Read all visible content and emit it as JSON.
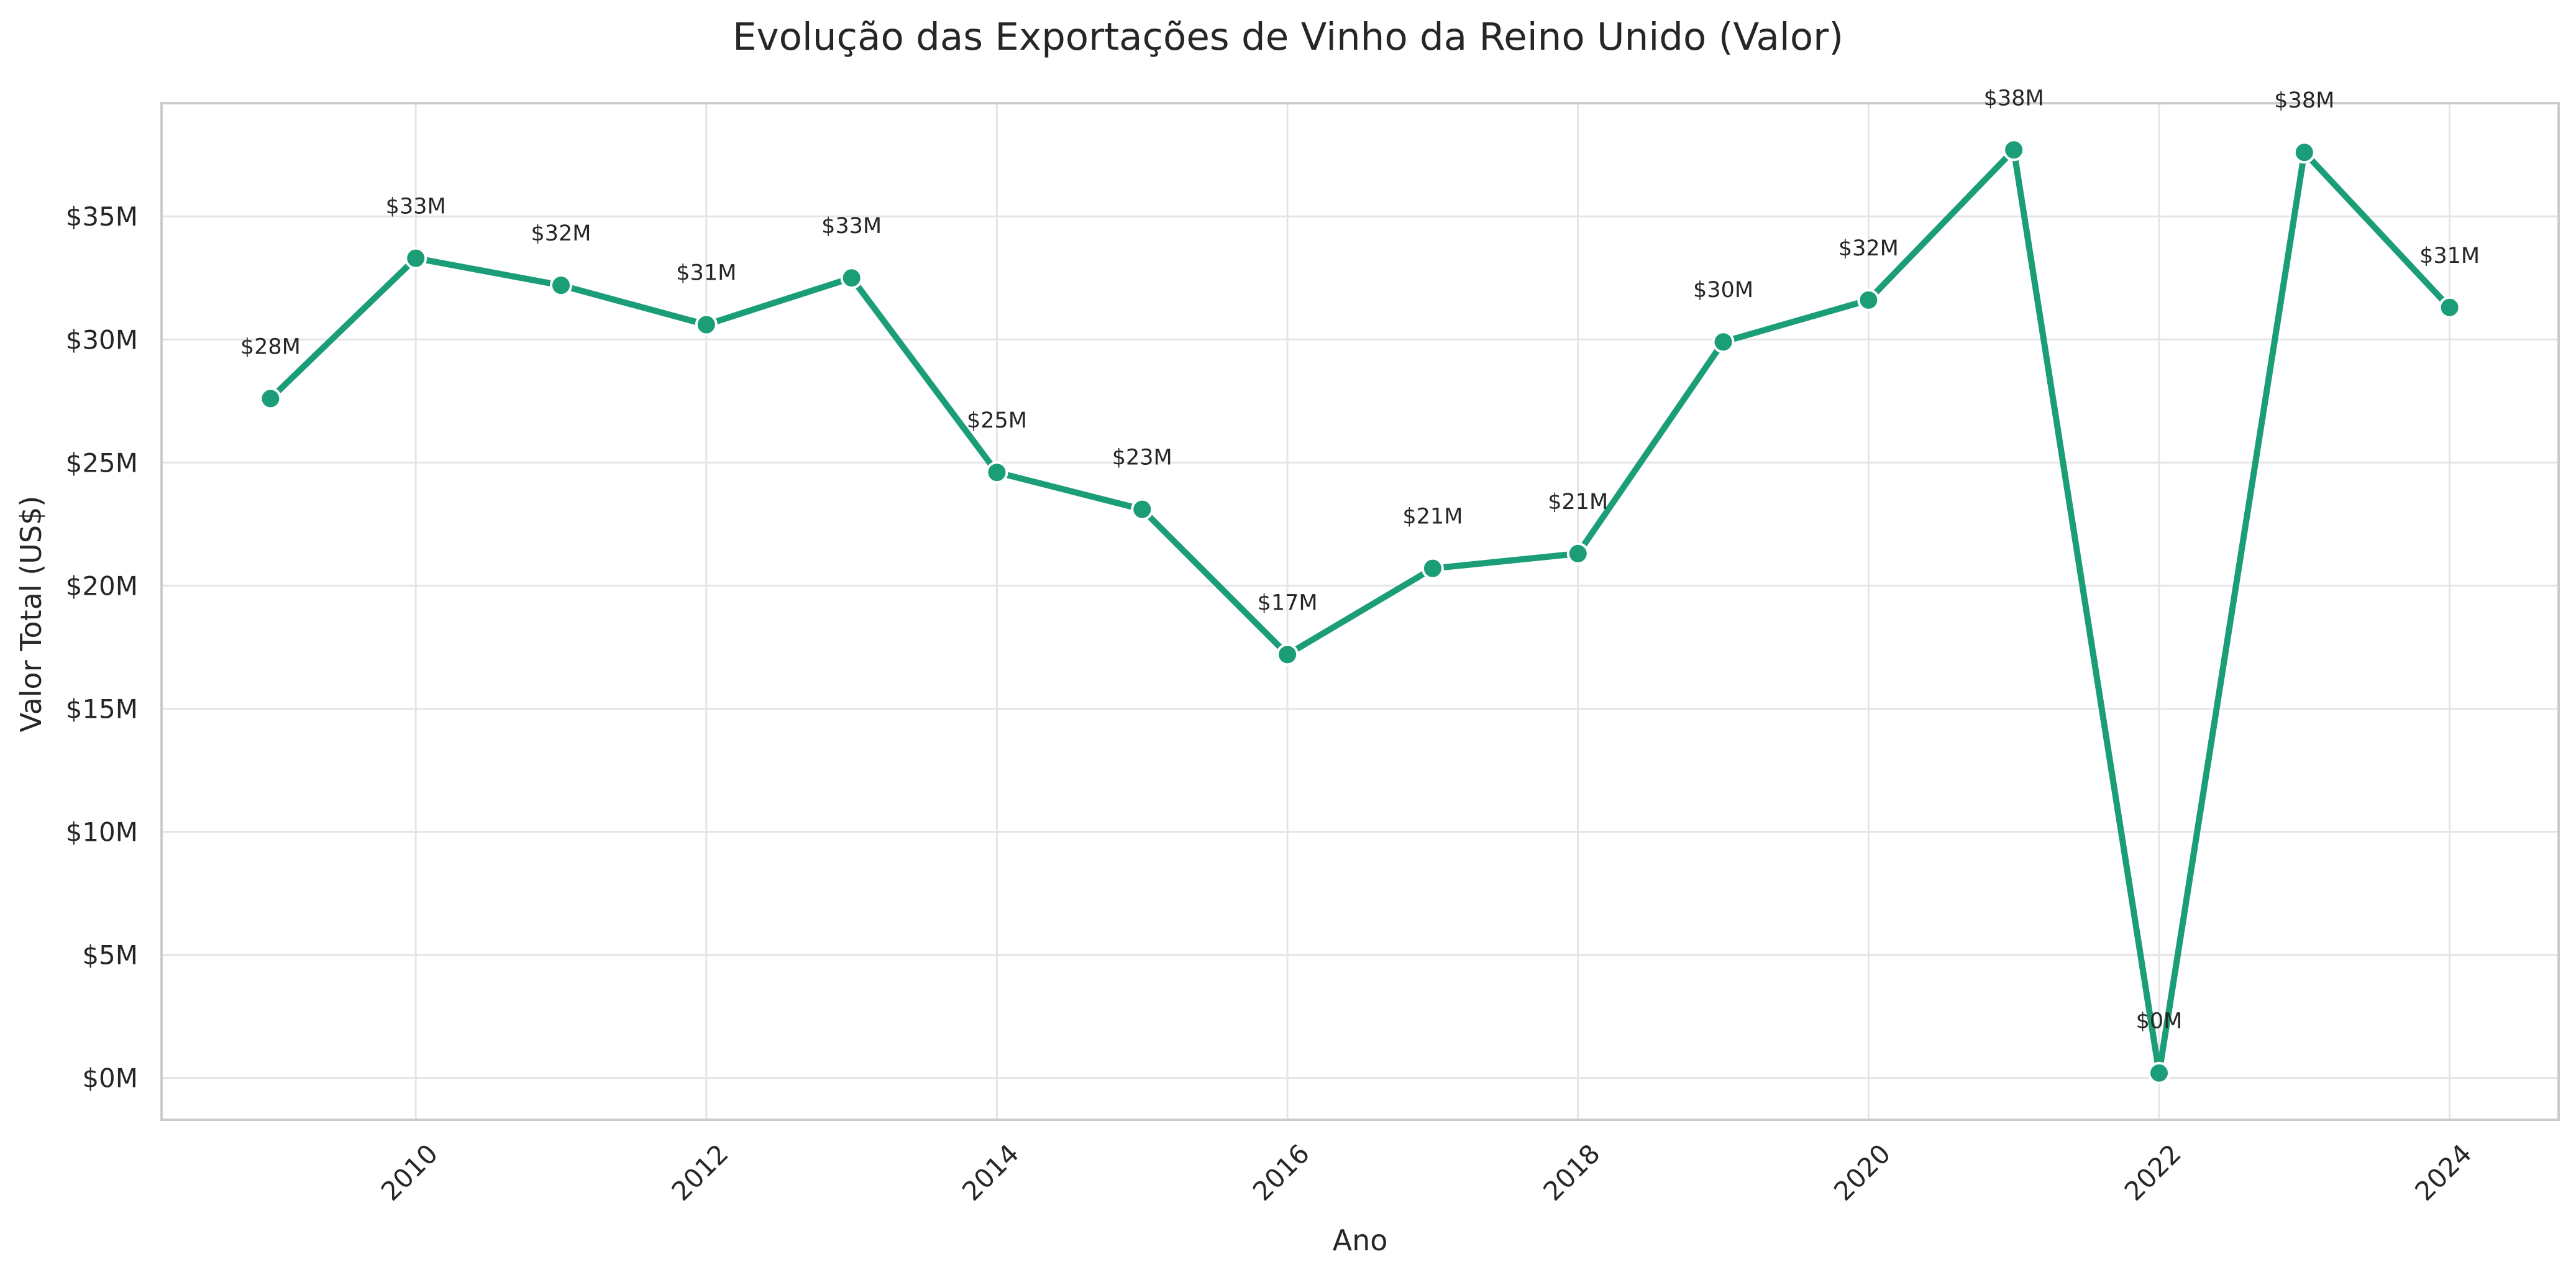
{
  "chart_data": {
    "type": "line",
    "title": "Evolução das Exportações de Vinho da Reino Unido (Valor)",
    "xlabel": "Ano",
    "ylabel": "Valor Total (US$)",
    "x": [
      2009,
      2010,
      2011,
      2012,
      2013,
      2014,
      2015,
      2016,
      2017,
      2018,
      2019,
      2020,
      2021,
      2022,
      2023,
      2024
    ],
    "series": [
      {
        "values": [
          27.6,
          33.3,
          32.2,
          30.6,
          32.5,
          24.6,
          23.1,
          17.2,
          20.7,
          21.3,
          29.9,
          31.6,
          37.7,
          0.2,
          37.6,
          31.3
        ],
        "labels": [
          "$28M",
          "$33M",
          "$32M",
          "$31M",
          "$33M",
          "$25M",
          "$23M",
          "$17M",
          "$21M",
          "$21M",
          "$30M",
          "$32M",
          "$38M",
          "$0M",
          "$38M",
          "$31M"
        ]
      }
    ],
    "x_ticks": [
      2010,
      2012,
      2014,
      2016,
      2018,
      2020,
      2022,
      2024
    ],
    "y_ticks": [
      0,
      5,
      10,
      15,
      20,
      25,
      30,
      35
    ],
    "y_tick_labels": [
      "$0M",
      "$5M",
      "$10M",
      "$15M",
      "$20M",
      "$25M",
      "$30M",
      "$35M"
    ],
    "xlim": [
      2008.25,
      2024.75
    ],
    "ylim": [
      -1.7,
      39.6
    ],
    "grid": true,
    "legend": false,
    "colors": {
      "line": "#1b9e77",
      "marker_edge": "#ffffff",
      "grid": "#e5e5e5",
      "frame": "#cccccc",
      "text": "#262626"
    }
  }
}
